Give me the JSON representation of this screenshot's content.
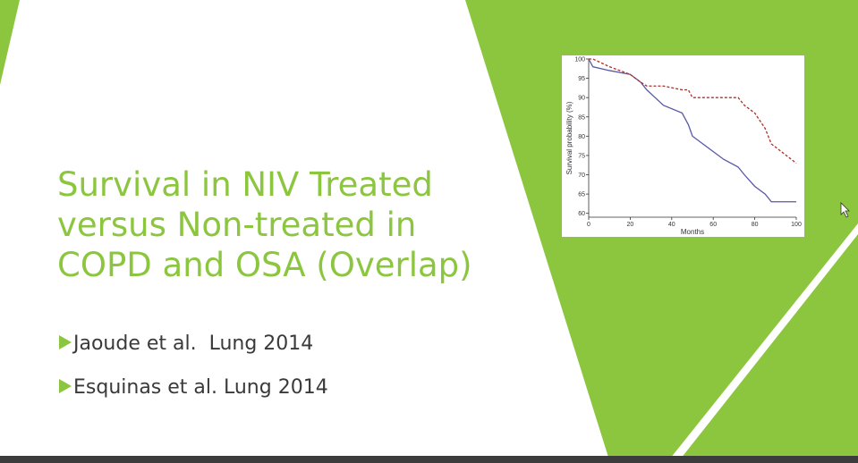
{
  "slide": {
    "title_lines": [
      "Survival in NIV Treated",
      "versus Non-treated in",
      "COPD and OSA (Overlap)"
    ],
    "bullets": [
      "Jaoude et al.  Lung 2014",
      "Esquinas et al. Lung 2014"
    ]
  },
  "chart_data": {
    "type": "line",
    "x_label": "Months",
    "y_label": "Survival probability (%)",
    "x": [
      0,
      2,
      10,
      20,
      25,
      28,
      32,
      36,
      45,
      48,
      50,
      55,
      60,
      65,
      72,
      75,
      80,
      85,
      88,
      100
    ],
    "series": [
      {
        "color": "#5858a8",
        "dash": false,
        "values": [
          100,
          98,
          97,
          96,
          94,
          92,
          90,
          88,
          86,
          83,
          80,
          78,
          76,
          74,
          72,
          70,
          67,
          65,
          63,
          63
        ]
      },
      {
        "color": "#a8322a",
        "dash": true,
        "values": [
          100,
          100,
          98,
          96,
          94,
          93,
          93,
          93,
          92,
          92,
          90,
          90,
          90,
          90,
          90,
          88,
          86,
          82,
          78,
          73
        ]
      }
    ],
    "xlim": [
      0,
      100
    ],
    "ylim": [
      59,
      100
    ],
    "xticks": [
      0,
      20,
      40,
      60,
      80,
      100
    ],
    "yticks": [
      60,
      65,
      70,
      75,
      80,
      85,
      90,
      95,
      100
    ]
  }
}
